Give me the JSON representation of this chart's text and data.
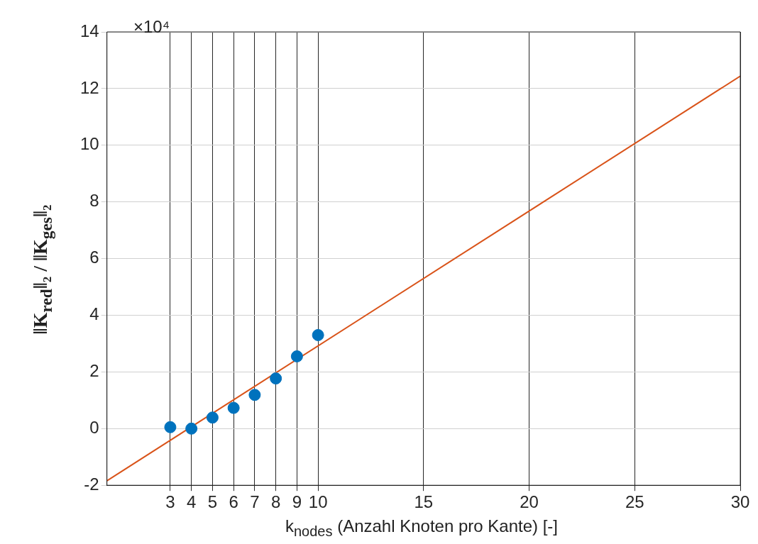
{
  "chart_data": {
    "type": "scatter",
    "xlabel": "k$_{nodes}$ (Anzahl Knoten pro Kante) [-]",
    "ylabel": "‖K$_{red}$‖₂ / ‖K$_{ges}$‖₂",
    "annotations": [
      "×10⁴"
    ],
    "series": [
      {
        "color": "#0072bd",
        "x": [
          3,
          4,
          5,
          6,
          7,
          8,
          9,
          10
        ],
        "values": [
          0.05,
          0,
          0.39,
          0.73,
          1.19,
          1.77,
          2.55,
          3.3
        ],
        "marker": "circle"
      },
      {
        "type": "line",
        "color": "#d95319",
        "x": [
          0,
          30
        ],
        "values": [
          -1.84,
          12.44
        ],
        "marker": "none"
      }
    ],
    "xlim": [
      0,
      30
    ],
    "xticks": [
      3,
      4,
      5,
      6,
      7,
      8,
      9,
      10,
      15,
      20,
      25,
      30
    ],
    "ylim": [
      -2,
      14
    ],
    "yticks": [
      -2,
      0,
      2,
      4,
      6,
      8,
      10,
      12,
      14
    ],
    "grid": true,
    "legend": false
  }
}
